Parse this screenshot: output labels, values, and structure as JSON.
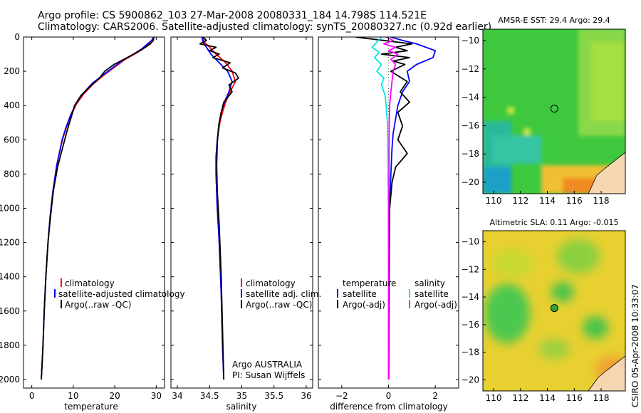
{
  "header": {
    "line1": "Argo profile: CS 5900862_103 27-Mar-2008 20080331_184 14.798S 114.521E",
    "line2": "Climatology: CARS2006. Satellite-adjusted climatology: synTS_20080327.nc (0.92d earlier)"
  },
  "colors": {
    "climatology": "#ff0000",
    "satellite": "#0000ff",
    "argo": "#000000",
    "argo_adj": "#ff00ff",
    "sat_sal": "#00e5e5"
  },
  "chart_data": [
    {
      "type": "line",
      "id": "temperature",
      "xlabel": "temperature",
      "ylabel": "",
      "xlim": [
        -2,
        32
      ],
      "ylim": [
        2050,
        0
      ],
      "xticks": [
        0,
        10,
        20,
        30
      ],
      "yticks": [
        0,
        200,
        400,
        600,
        800,
        1000,
        1200,
        1400,
        1600,
        1800,
        2000
      ],
      "legend": [
        "climatology",
        "satellite-adjusted climatology",
        "Argo(..raw -QC)"
      ],
      "series": [
        {
          "name": "climatology",
          "color": "#ff0000",
          "x": [
            29.4,
            29.0,
            28.2,
            26.8,
            24.8,
            22.5,
            20.3,
            17.5,
            15.0,
            12.6,
            10.8,
            9.4,
            8.3,
            7.4,
            6.0,
            5.1,
            4.4,
            3.9,
            3.4,
            3.0,
            2.7,
            2.5,
            2.3
          ],
          "y": [
            0,
            20,
            40,
            70,
            100,
            130,
            170,
            220,
            270,
            330,
            390,
            460,
            530,
            600,
            750,
            900,
            1050,
            1200,
            1400,
            1600,
            1800,
            1900,
            2000
          ]
        },
        {
          "name": "satellite-adjusted climatology",
          "color": "#0000ff",
          "x": [
            29.4,
            28.9,
            27.9,
            26.5,
            24.5,
            22.3,
            20.0,
            17.3,
            14.6,
            12.3,
            10.6,
            9.3,
            8.2,
            7.3,
            6.0,
            5.1,
            4.4,
            3.9,
            3.4,
            3.0,
            2.7,
            2.5,
            2.3
          ],
          "y": [
            0,
            20,
            40,
            70,
            100,
            130,
            170,
            220,
            270,
            330,
            390,
            460,
            530,
            600,
            750,
            900,
            1050,
            1200,
            1400,
            1600,
            1800,
            1900,
            2000
          ]
        },
        {
          "name": "Argo(..raw -QC)",
          "color": "#000000",
          "x": [
            29.4,
            29.3,
            28.6,
            27.4,
            26.0,
            23.0,
            19.8,
            17.6,
            16.3,
            14.0,
            11.9,
            10.3,
            9.6,
            8.6,
            7.4,
            6.2,
            5.2,
            4.5,
            3.9,
            3.4,
            3.0,
            2.7,
            2.5,
            2.3
          ],
          "y": [
            0,
            20,
            40,
            60,
            80,
            120,
            160,
            200,
            240,
            290,
            340,
            400,
            460,
            540,
            650,
            760,
            900,
            1050,
            1200,
            1400,
            1600,
            1800,
            1900,
            2000
          ]
        }
      ]
    },
    {
      "type": "line",
      "id": "salinity",
      "xlabel": "salinity",
      "ylabel": "",
      "xlim": [
        33.9,
        36.1
      ],
      "ylim": [
        2050,
        0
      ],
      "xticks": [
        34,
        34.5,
        35,
        35.5,
        36
      ],
      "legend": [
        "climatology",
        "satellite adj. clim.",
        "Argo(..raw -QC)"
      ],
      "annotations": [
        "Argo AUSTRALIA",
        "PI: Susan Wijffels"
      ],
      "series": [
        {
          "name": "climatology",
          "color": "#ff0000",
          "x": [
            34.4,
            34.42,
            34.5,
            34.6,
            34.75,
            34.85,
            34.9,
            34.82,
            34.75,
            34.7,
            34.66,
            34.62,
            34.6,
            34.6,
            34.62,
            34.65,
            34.68,
            34.7,
            34.72
          ],
          "y": [
            0,
            30,
            60,
            100,
            150,
            200,
            260,
            320,
            380,
            440,
            500,
            600,
            700,
            800,
            1000,
            1200,
            1500,
            1800,
            2000
          ]
        },
        {
          "name": "satellite adj. clim.",
          "color": "#0000ff",
          "x": [
            34.38,
            34.4,
            34.45,
            34.52,
            34.65,
            34.78,
            34.85,
            34.8,
            34.73,
            34.68,
            34.65,
            34.62,
            34.6,
            34.6,
            34.62,
            34.65,
            34.68,
            34.7,
            34.72
          ],
          "y": [
            0,
            30,
            60,
            100,
            150,
            200,
            260,
            320,
            380,
            440,
            500,
            600,
            700,
            800,
            1000,
            1200,
            1500,
            1800,
            2000
          ]
        },
        {
          "name": "Argo(..raw -QC)",
          "color": "#000000",
          "x": [
            34.4,
            34.45,
            34.35,
            34.6,
            34.5,
            34.65,
            34.55,
            34.82,
            34.7,
            34.9,
            34.95,
            34.8,
            34.85,
            34.72,
            34.68,
            34.64,
            34.62,
            34.61,
            34.62,
            34.65,
            34.68,
            34.7,
            34.72
          ],
          "y": [
            0,
            20,
            40,
            60,
            80,
            100,
            120,
            150,
            180,
            210,
            240,
            280,
            320,
            380,
            440,
            520,
            620,
            750,
            900,
            1100,
            1400,
            1700,
            2000
          ]
        }
      ]
    },
    {
      "type": "line",
      "id": "difference",
      "xlabel": "difference from climatology",
      "ylabel": "",
      "xlim": [
        -3,
        3
      ],
      "ylim": [
        2050,
        0
      ],
      "xticks": [
        -2,
        0,
        2
      ],
      "legend": [
        "temperature",
        "satellite",
        "Argo(-adj)",
        "salinity",
        "satellite",
        "Argo(-adj)"
      ],
      "series": [
        {
          "name": "temperature satellite",
          "color": "#0000ff",
          "x": [
            0.1,
            0.6,
            1.2,
            1.6,
            2.0,
            1.9,
            1.2,
            0.8,
            0.9,
            0.6,
            0.4,
            0.3,
            0.2,
            0.15,
            0.1,
            0.05,
            0.03,
            0.02,
            0.01
          ],
          "y": [
            0,
            20,
            40,
            60,
            80,
            120,
            160,
            200,
            260,
            320,
            400,
            480,
            560,
            650,
            800,
            1000,
            1300,
            1600,
            2000
          ]
        },
        {
          "name": "temperature Argo(-adj)",
          "color": "#000000",
          "x": [
            -1.4,
            -0.2,
            1.0,
            0.3,
            0.8,
            -0.3,
            0.9,
            0.2,
            0.7,
            0.1,
            0.8,
            0.5,
            0.9,
            0.4,
            0.6,
            0.4,
            0.8,
            0.3,
            0.15,
            0.05,
            0.02,
            0.01
          ],
          "y": [
            0,
            20,
            40,
            60,
            80,
            100,
            120,
            140,
            160,
            200,
            260,
            320,
            380,
            440,
            520,
            600,
            680,
            760,
            850,
            1000,
            1500,
            2000
          ]
        },
        {
          "name": "salinity satellite",
          "color": "#00e5e5",
          "x": [
            -0.3,
            -0.5,
            -0.7,
            -0.4,
            -0.6,
            -0.3,
            -0.5,
            -0.2,
            -0.3,
            -0.15,
            -0.1,
            -0.05,
            -0.03,
            -0.02,
            -0.01,
            0.0,
            0.0
          ],
          "y": [
            0,
            30,
            60,
            90,
            120,
            160,
            200,
            240,
            280,
            340,
            400,
            500,
            650,
            800,
            1100,
            1500,
            2000
          ]
        },
        {
          "name": "salinity Argo(-adj)",
          "color": "#ff00ff",
          "x": [
            -0.1,
            0.2,
            -0.2,
            0.3,
            0.0,
            0.4,
            0.1,
            0.3,
            0.2,
            0.15,
            0.1,
            0.05,
            0.03,
            0.02,
            0.01,
            0.0
          ],
          "y": [
            0,
            20,
            40,
            60,
            80,
            100,
            130,
            160,
            200,
            260,
            320,
            400,
            500,
            700,
            1200,
            2000
          ]
        }
      ]
    },
    {
      "type": "heatmap",
      "id": "sst_map",
      "title": "AMSR-E SST: 29.4 Argo: 29.4",
      "xlim": [
        109.2,
        119.8
      ],
      "ylim": [
        -20.8,
        -9.2
      ],
      "xticks": [
        110,
        112,
        114,
        116,
        118
      ],
      "yticks": [
        -10,
        -12,
        -14,
        -16,
        -18,
        -20
      ],
      "marker": {
        "lon": 114.52,
        "lat": -14.8,
        "label": "Argo"
      }
    },
    {
      "type": "heatmap",
      "id": "sla_map",
      "title": "Altimetric SLA: 0.11 Argo: -0.015",
      "xlim": [
        109.2,
        119.8
      ],
      "ylim": [
        -20.8,
        -9.2
      ],
      "xticks": [
        110,
        112,
        114,
        116,
        118
      ],
      "yticks": [
        -10,
        -12,
        -14,
        -16,
        -18,
        -20
      ],
      "marker": {
        "lon": 114.52,
        "lat": -14.8,
        "label": "Argo"
      }
    }
  ],
  "footer": {
    "stamp": "CSIRO 05-Apr-2008 10:33:07"
  }
}
